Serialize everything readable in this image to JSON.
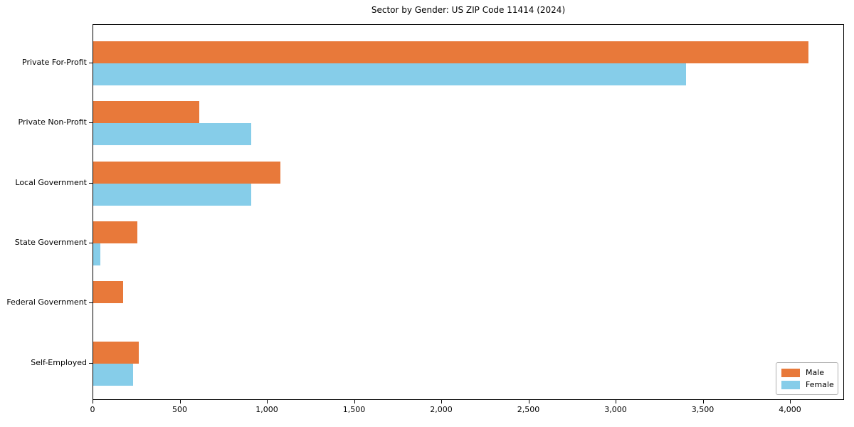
{
  "title": "Sector by Gender: US ZIP Code 11414 (2024)",
  "chart_data": {
    "type": "bar",
    "orientation": "horizontal",
    "title": "Sector by Gender: US ZIP Code 11414 (2024)",
    "xlabel": "",
    "ylabel": "",
    "grid": false,
    "legend_position": "lower right",
    "categories": [
      "Private For-Profit",
      "Private Non-Profit",
      "Local Government",
      "State Government",
      "Federal Government",
      "Self-Employed"
    ],
    "series": [
      {
        "name": "Male",
        "color": "#e8793a",
        "values": [
          4100,
          610,
          1075,
          255,
          170,
          260
        ]
      },
      {
        "name": "Female",
        "color": "#86cde9",
        "values": [
          3400,
          905,
          905,
          40,
          0,
          230
        ]
      }
    ],
    "xlim": [
      0,
      4310
    ],
    "x_ticks": [
      0,
      500,
      1000,
      1500,
      2000,
      2500,
      3000,
      3500,
      4000
    ],
    "x_tick_labels": [
      "0",
      "500",
      "1,000",
      "1,500",
      "2,000",
      "2,500",
      "3,000",
      "3,500",
      "4,000"
    ]
  }
}
